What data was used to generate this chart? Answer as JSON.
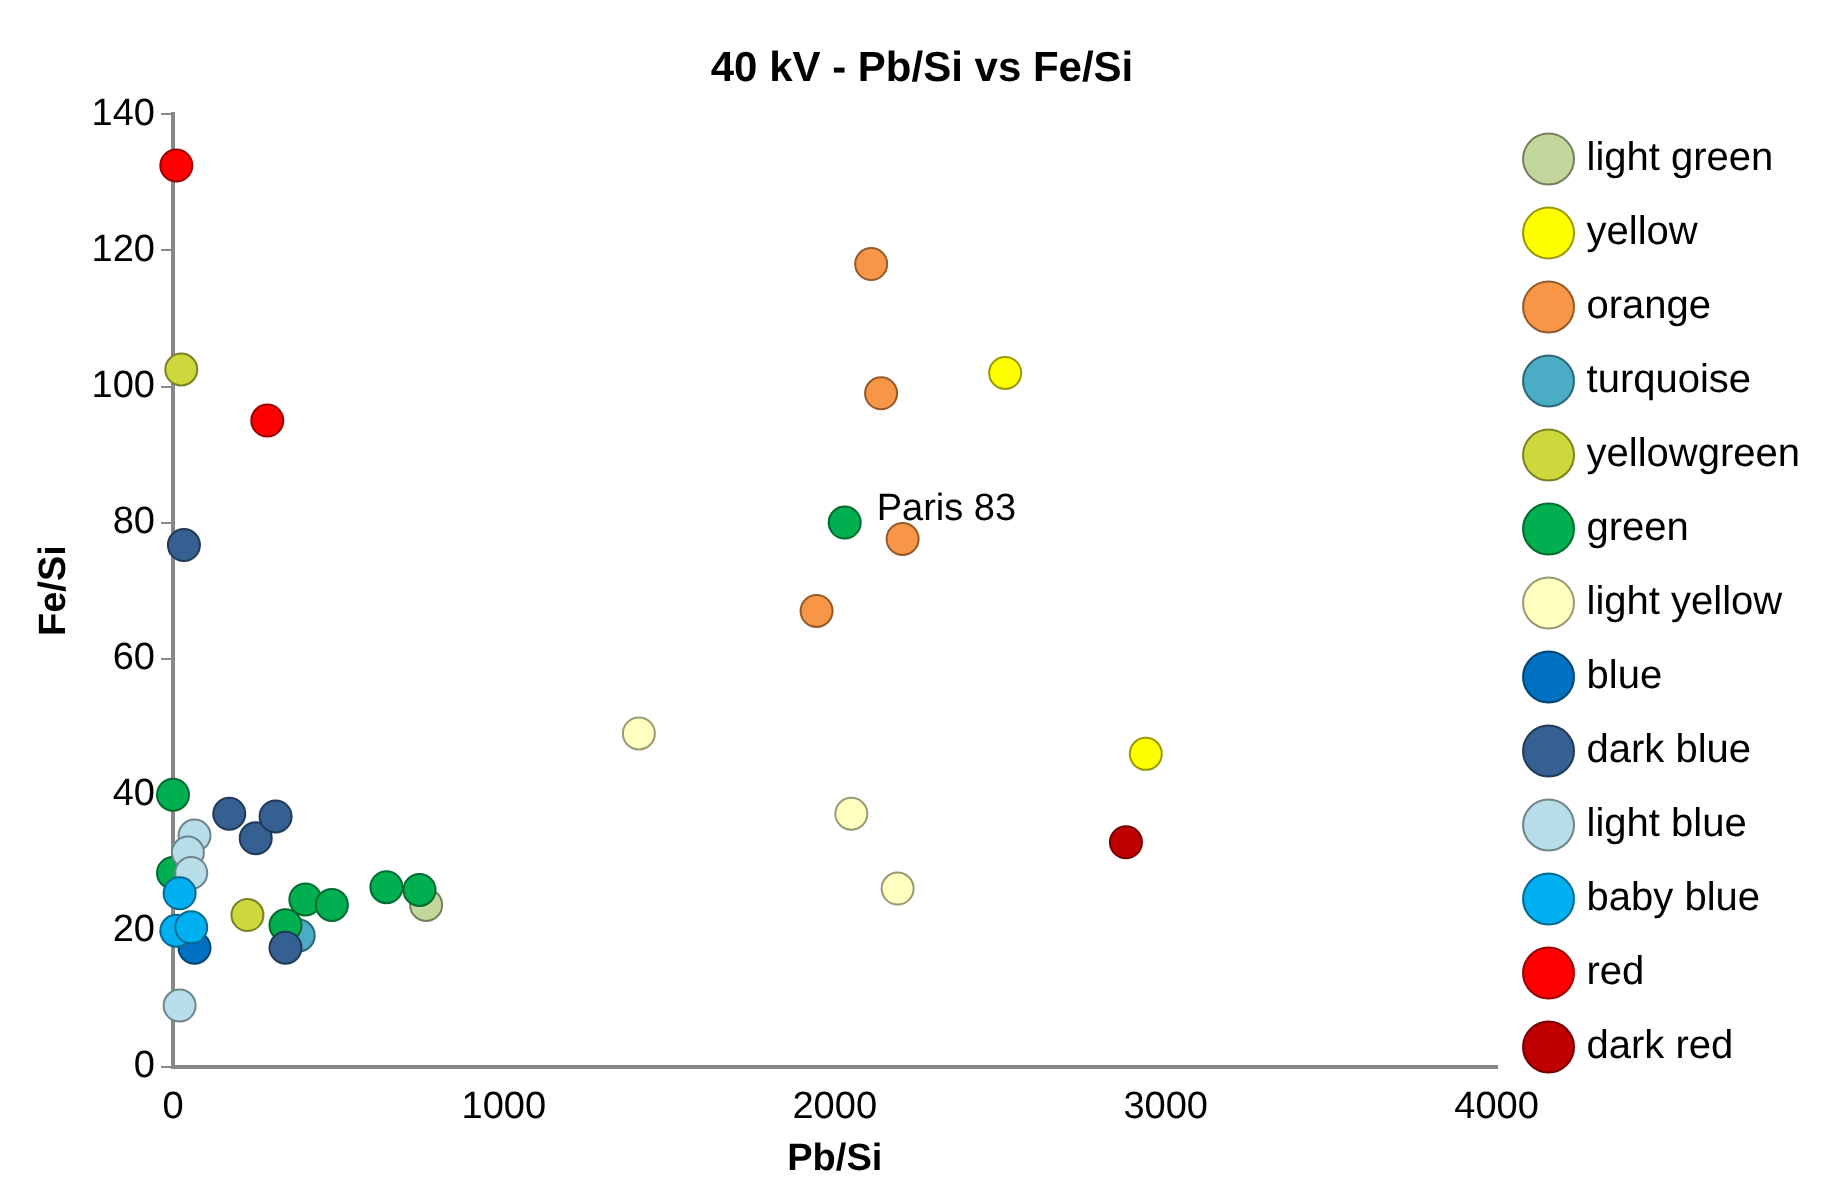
{
  "chart_data": {
    "type": "scatter",
    "title": "40 kV - Pb/Si vs Fe/Si",
    "xlabel": "Pb/Si",
    "ylabel": "Fe/Si",
    "xlim": [
      0,
      4000
    ],
    "xticks": [
      0,
      1000,
      2000,
      3000,
      4000
    ],
    "ylim": [
      0,
      140
    ],
    "yticks": [
      0,
      20,
      40,
      60,
      80,
      100,
      120,
      140
    ],
    "grid": false,
    "legend": "right",
    "marker": "circle",
    "annotations": [
      {
        "text": "Paris 83",
        "x": 2030,
        "y": 80
      }
    ],
    "series": [
      {
        "name": "light green",
        "color": "#c3d69b",
        "x": [
          765
        ],
        "values": [
          23.8
        ]
      },
      {
        "name": "yellow",
        "color": "#ffff00",
        "x": [
          2515,
          2940
        ],
        "values": [
          102,
          46
        ]
      },
      {
        "name": "orange",
        "color": "#f79646",
        "x": [
          2110,
          2140,
          2205,
          1945
        ],
        "values": [
          118,
          99,
          77.6,
          67
        ]
      },
      {
        "name": "turquoise",
        "color": "#4bacc6",
        "x": [
          380
        ],
        "values": [
          19.3
        ]
      },
      {
        "name": "yellowgreen",
        "color": "#cdd83c",
        "x": [
          225,
          25
        ],
        "values": [
          22.3,
          102.5
        ]
      },
      {
        "name": "green",
        "color": "#00b050",
        "x": [
          0,
          0,
          340,
          400,
          480,
          645,
          745,
          2030
        ],
        "values": [
          40,
          28.5,
          20.8,
          24.6,
          23.8,
          26.4,
          26,
          80
        ]
      },
      {
        "name": "light yellow",
        "color": "#ffffc0",
        "x": [
          2050,
          2190,
          1408
        ],
        "values": [
          37.2,
          26.2,
          49
        ]
      },
      {
        "name": "blue",
        "color": "#0070c0",
        "x": [
          65
        ],
        "values": [
          17.5
        ]
      },
      {
        "name": "dark blue",
        "color": "#376092",
        "x": [
          33,
          170,
          250,
          310,
          340
        ],
        "values": [
          76.7,
          37.2,
          33.6,
          36.8,
          17.5
        ]
      },
      {
        "name": "light blue",
        "color": "#b7dde8",
        "x": [
          65,
          45,
          55,
          20
        ],
        "values": [
          34,
          31.5,
          28.5,
          9
        ]
      },
      {
        "name": "baby blue",
        "color": "#00b0f0",
        "x": [
          20,
          10,
          55
        ],
        "values": [
          25.5,
          20,
          20.5
        ]
      },
      {
        "name": "red",
        "color": "#ff0000",
        "x": [
          10,
          285
        ],
        "values": [
          132.5,
          95
        ]
      },
      {
        "name": "dark red",
        "color": "#c00000",
        "x": [
          2880
        ],
        "values": [
          33
        ]
      }
    ]
  }
}
